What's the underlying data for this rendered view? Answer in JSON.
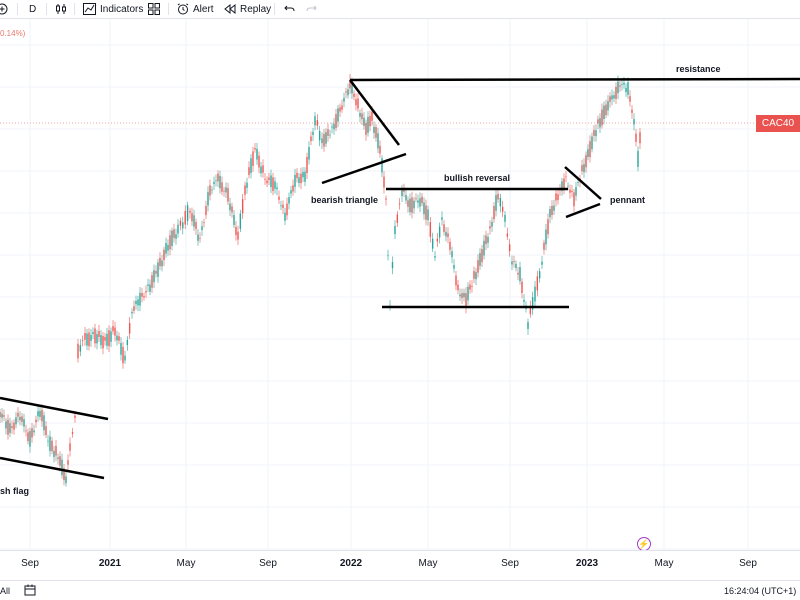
{
  "toolbar": {
    "interval": "D",
    "indicators_label": "Indicators",
    "alert_label": "Alert",
    "replay_label": "Replay"
  },
  "chart": {
    "symbol_badge": "CAC40",
    "change_text": "0.14%)",
    "annotations": {
      "resistance": "resistance",
      "bearish_triangle": "bearish triangle",
      "bullish_reversal": "bullish reversal",
      "pennant": "pennant",
      "flag": "sh flag"
    },
    "colors": {
      "bull": "#26a69a",
      "bear": "#ef5350",
      "badge": "#e9524f",
      "grid": "#f0f3fa",
      "trend_lines": "#000000"
    }
  },
  "time_axis": {
    "ticks": [
      {
        "label": "Sep",
        "bold": false
      },
      {
        "label": "2021",
        "bold": true
      },
      {
        "label": "May",
        "bold": false
      },
      {
        "label": "Sep",
        "bold": false
      },
      {
        "label": "2022",
        "bold": true
      },
      {
        "label": "May",
        "bold": false
      },
      {
        "label": "Sep",
        "bold": false
      },
      {
        "label": "2023",
        "bold": true
      },
      {
        "label": "May",
        "bold": false
      },
      {
        "label": "Sep",
        "bold": false
      }
    ]
  },
  "bottom_bar": {
    "range_label": "All",
    "clock": "16:24:04 (UTC+1)"
  }
}
